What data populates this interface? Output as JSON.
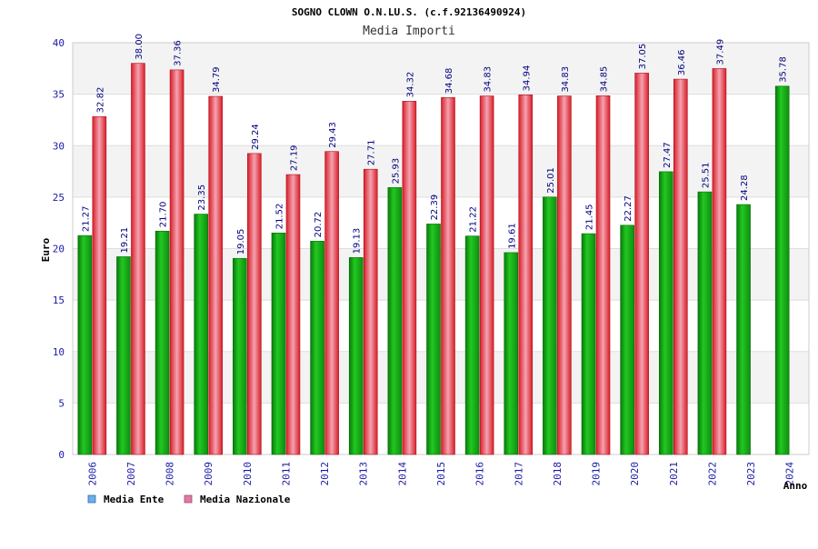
{
  "chart_data": {
    "type": "bar",
    "title": "SOGNO CLOWN O.N.LU.S. (c.f.92136490924)",
    "subtitle": "Media Importi",
    "xlabel": "Anno",
    "ylabel": "Euro",
    "ylim": [
      0,
      40
    ],
    "yticks": [
      "0",
      "5",
      "10",
      "15",
      "20",
      "25",
      "30",
      "35",
      "40"
    ],
    "grid": true,
    "legend_position": "bottom-left",
    "categories": [
      "2006",
      "2007",
      "2008",
      "2009",
      "2010",
      "2011",
      "2012",
      "2013",
      "2014",
      "2015",
      "2016",
      "2017",
      "2018",
      "2019",
      "2020",
      "2021",
      "2022",
      "2023",
      "2024"
    ],
    "series": [
      {
        "name": "Media Ente",
        "color": "#1faa1f",
        "legend_color": "#6aaef0",
        "values": [
          21.27,
          19.21,
          21.7,
          23.35,
          19.05,
          21.52,
          20.72,
          19.13,
          25.93,
          22.39,
          21.22,
          19.61,
          25.01,
          21.45,
          22.27,
          27.47,
          25.51,
          24.28,
          35.78
        ],
        "labels": [
          "21.27",
          "19.21",
          "21.70",
          "23.35",
          "19.05",
          "21.52",
          "20.72",
          "19.13",
          "25.93",
          "22.39",
          "21.22",
          "19.61",
          "25.01",
          "21.45",
          "22.27",
          "27.47",
          "25.51",
          "24.28",
          "35.78"
        ]
      },
      {
        "name": "Media Nazionale",
        "color": "#e8202a",
        "legend_color": "#e07aa0",
        "values": [
          32.82,
          38.0,
          37.36,
          34.79,
          29.24,
          27.19,
          29.43,
          27.71,
          34.32,
          34.68,
          34.83,
          34.94,
          34.83,
          34.85,
          37.05,
          36.46,
          37.49,
          null,
          null
        ],
        "labels": [
          "32.82",
          "38.00",
          "37.36",
          "34.79",
          "29.24",
          "27.19",
          "29.43",
          "27.71",
          "34.32",
          "34.68",
          "34.83",
          "34.94",
          "34.83",
          "34.85",
          "37.05",
          "36.46",
          "37.49",
          null,
          null
        ]
      }
    ]
  }
}
